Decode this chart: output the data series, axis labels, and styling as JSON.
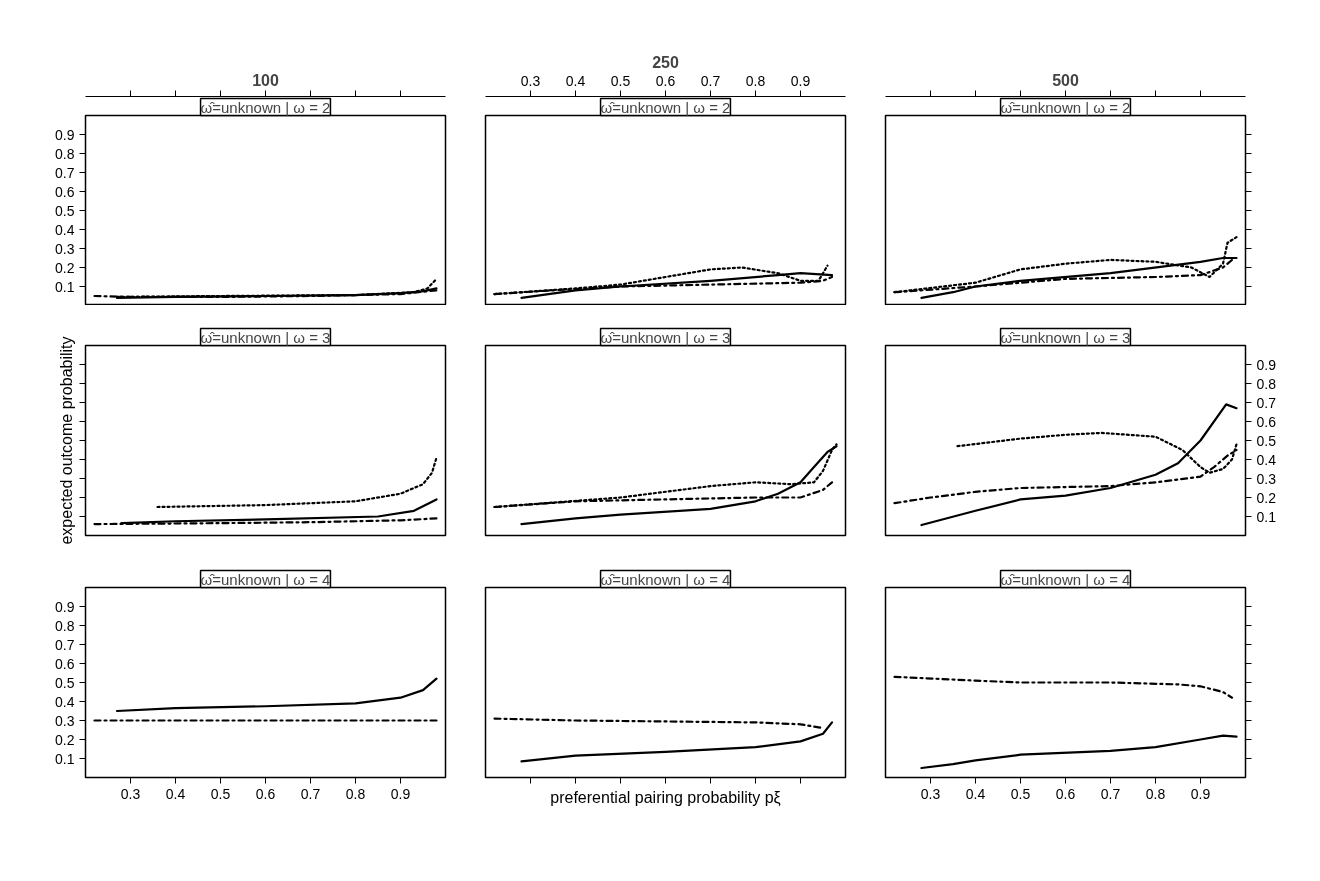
{
  "chart_data": [
    {
      "type": "line",
      "title": "100",
      "subtitle": "ω̂=unknown | ω = 2",
      "xlim": [
        0.2,
        1.0
      ],
      "ylim": [
        0,
        1.0
      ],
      "yticks": [
        0.1,
        0.2,
        0.3,
        0.4,
        0.5,
        0.6,
        0.7,
        0.8,
        0.9
      ],
      "tick_labels": "y",
      "grid": false,
      "series": [
        {
          "color": "#000000",
          "line_style": "solid",
          "x": [
            0.27,
            0.4,
            0.6,
            0.8,
            0.9,
            0.95,
            0.98
          ],
          "values": [
            0.04,
            0.045,
            0.05,
            0.055,
            0.065,
            0.075,
            0.09
          ]
        },
        {
          "color": "#000000",
          "line_style": "dotted",
          "x": [
            0.27,
            0.5,
            0.8,
            0.93,
            0.96,
            0.98
          ],
          "values": [
            0.045,
            0.05,
            0.055,
            0.07,
            0.09,
            0.14
          ]
        },
        {
          "color": "#000000",
          "line_style": "dashdot",
          "x": [
            0.22,
            0.3,
            0.5,
            0.7,
            0.9,
            0.98
          ],
          "values": [
            0.05,
            0.045,
            0.045,
            0.05,
            0.06,
            0.08
          ]
        }
      ]
    },
    {
      "type": "line",
      "title": "250",
      "subtitle": "ω̂=unknown | ω = 2",
      "xlim": [
        0.2,
        1.0
      ],
      "ylim": [
        0,
        1.0
      ],
      "x2lim": [
        0.2,
        1.0
      ],
      "x2ticks": [
        0.3,
        0.4,
        0.5,
        0.6,
        0.7,
        0.8,
        0.9
      ],
      "tick_labels": "x2",
      "grid": false,
      "series": [
        {
          "color": "#000000",
          "line_style": "solid",
          "x": [
            0.28,
            0.4,
            0.5,
            0.7,
            0.85,
            0.9,
            0.97
          ],
          "values": [
            0.04,
            0.08,
            0.1,
            0.13,
            0.16,
            0.17,
            0.16
          ]
        },
        {
          "color": "#000000",
          "line_style": "dotted",
          "x": [
            0.22,
            0.4,
            0.5,
            0.6,
            0.7,
            0.77,
            0.85,
            0.9,
            0.94,
            0.96
          ],
          "values": [
            0.06,
            0.09,
            0.11,
            0.15,
            0.19,
            0.2,
            0.17,
            0.13,
            0.13,
            0.21
          ]
        },
        {
          "color": "#000000",
          "line_style": "dashdot",
          "x": [
            0.22,
            0.35,
            0.5,
            0.7,
            0.9,
            0.95,
            0.97
          ],
          "values": [
            0.06,
            0.08,
            0.1,
            0.11,
            0.12,
            0.13,
            0.15
          ]
        }
      ]
    },
    {
      "type": "line",
      "title": "500",
      "subtitle": "ω̂=unknown | ω = 2",
      "xlim": [
        0.2,
        1.0
      ],
      "ylim": [
        0,
        1.0
      ],
      "tick_labels": false,
      "grid": false,
      "series": [
        {
          "color": "#000000",
          "line_style": "solid",
          "x": [
            0.28,
            0.35,
            0.4,
            0.5,
            0.7,
            0.9,
            0.95,
            0.98
          ],
          "values": [
            0.04,
            0.07,
            0.1,
            0.13,
            0.17,
            0.23,
            0.25,
            0.25
          ]
        },
        {
          "color": "#000000",
          "line_style": "dotted",
          "x": [
            0.22,
            0.4,
            0.5,
            0.6,
            0.7,
            0.8,
            0.88,
            0.92,
            0.95,
            0.96,
            0.98
          ],
          "values": [
            0.07,
            0.12,
            0.19,
            0.22,
            0.24,
            0.23,
            0.2,
            0.15,
            0.22,
            0.33,
            0.36
          ]
        },
        {
          "color": "#000000",
          "line_style": "dashdot",
          "x": [
            0.22,
            0.4,
            0.6,
            0.8,
            0.9,
            0.95,
            0.97
          ],
          "values": [
            0.07,
            0.1,
            0.14,
            0.15,
            0.16,
            0.2,
            0.24
          ]
        }
      ]
    },
    {
      "type": "line",
      "subtitle": "ω̂=unknown | ω = 3",
      "ylabel": "expected outcome probability",
      "xlim": [
        0.2,
        1.0
      ],
      "ylim": [
        0,
        1.0
      ],
      "tick_labels": false,
      "grid": false,
      "series": [
        {
          "color": "#000000",
          "line_style": "solid",
          "x": [
            0.28,
            0.4,
            0.6,
            0.85,
            0.93,
            0.98
          ],
          "values": [
            0.065,
            0.075,
            0.085,
            0.1,
            0.13,
            0.19
          ]
        },
        {
          "color": "#000000",
          "line_style": "dotted",
          "x": [
            0.36,
            0.6,
            0.8,
            0.9,
            0.95,
            0.97,
            0.98
          ],
          "values": [
            0.15,
            0.16,
            0.18,
            0.22,
            0.27,
            0.33,
            0.41
          ]
        },
        {
          "color": "#000000",
          "line_style": "dashdot",
          "x": [
            0.22,
            0.5,
            0.7,
            0.9,
            0.98
          ],
          "values": [
            0.06,
            0.065,
            0.07,
            0.08,
            0.09
          ]
        }
      ]
    },
    {
      "type": "line",
      "subtitle": "ω̂=unknown | ω = 3",
      "xlim": [
        0.2,
        1.0
      ],
      "ylim": [
        0,
        1.0
      ],
      "grid": false,
      "series": [
        {
          "color": "#000000",
          "line_style": "solid",
          "x": [
            0.28,
            0.4,
            0.5,
            0.7,
            0.8,
            0.85,
            0.9,
            0.93,
            0.96,
            0.98
          ],
          "values": [
            0.06,
            0.09,
            0.11,
            0.14,
            0.18,
            0.22,
            0.28,
            0.36,
            0.44,
            0.47
          ]
        },
        {
          "color": "#000000",
          "line_style": "dotted",
          "x": [
            0.22,
            0.5,
            0.7,
            0.8,
            0.88,
            0.93,
            0.95,
            0.97,
            0.98
          ],
          "values": [
            0.15,
            0.2,
            0.26,
            0.28,
            0.27,
            0.28,
            0.34,
            0.45,
            0.48
          ]
        },
        {
          "color": "#000000",
          "line_style": "dashdot",
          "x": [
            0.22,
            0.4,
            0.6,
            0.8,
            0.9,
            0.95,
            0.97
          ],
          "values": [
            0.15,
            0.18,
            0.19,
            0.2,
            0.2,
            0.24,
            0.28
          ]
        }
      ]
    },
    {
      "type": "line",
      "subtitle": "ω̂=unknown | ω = 3",
      "xlim": [
        0.2,
        1.0
      ],
      "ylim": [
        0,
        1.0
      ],
      "yticks": [
        0.1,
        0.2,
        0.3,
        0.4,
        0.5,
        0.6,
        0.7,
        0.8,
        0.9
      ],
      "tick_labels": "y",
      "grid": false,
      "series": [
        {
          "color": "#000000",
          "line_style": "solid",
          "x": [
            0.28,
            0.4,
            0.5,
            0.6,
            0.7,
            0.8,
            0.85,
            0.9,
            0.957,
            0.98
          ],
          "values": [
            0.055,
            0.13,
            0.19,
            0.21,
            0.25,
            0.32,
            0.38,
            0.5,
            0.69,
            0.67
          ]
        },
        {
          "color": "#000000",
          "line_style": "dotted",
          "x": [
            0.36,
            0.5,
            0.6,
            0.68,
            0.8,
            0.86,
            0.9,
            0.92,
            0.95,
            0.97,
            0.98
          ],
          "values": [
            0.47,
            0.51,
            0.53,
            0.54,
            0.52,
            0.45,
            0.36,
            0.33,
            0.35,
            0.4,
            0.48
          ]
        },
        {
          "color": "#000000",
          "line_style": "dashdot",
          "x": [
            0.22,
            0.3,
            0.4,
            0.5,
            0.7,
            0.8,
            0.9,
            0.93,
            0.96,
            0.98
          ],
          "values": [
            0.17,
            0.2,
            0.23,
            0.25,
            0.26,
            0.28,
            0.31,
            0.36,
            0.42,
            0.45
          ]
        }
      ]
    },
    {
      "type": "line",
      "subtitle": "ω̂=unknown | ω = 4",
      "xlim": [
        0.2,
        1.0
      ],
      "ylim": [
        0,
        1.0
      ],
      "xticks": [
        0.3,
        0.4,
        0.5,
        0.6,
        0.7,
        0.8,
        0.9
      ],
      "yticks": [
        0.1,
        0.2,
        0.3,
        0.4,
        0.5,
        0.6,
        0.7,
        0.8,
        0.9
      ],
      "grid": false,
      "series": [
        {
          "color": "#000000",
          "line_style": "solid",
          "x": [
            0.27,
            0.4,
            0.6,
            0.8,
            0.9,
            0.95,
            0.98
          ],
          "values": [
            0.35,
            0.365,
            0.375,
            0.39,
            0.42,
            0.46,
            0.52
          ]
        },
        {
          "color": "#000000",
          "line_style": "dashdot",
          "x": [
            0.22,
            0.5,
            0.98
          ],
          "values": [
            0.3,
            0.3,
            0.3
          ]
        }
      ]
    },
    {
      "type": "line",
      "subtitle": "ω̂=unknown | ω = 4",
      "xlabel": "preferential pairing probability pξ",
      "xlim": [
        0.2,
        1.0
      ],
      "ylim": [
        0,
        1.0
      ],
      "tick_labels": false,
      "grid": false,
      "series": [
        {
          "color": "#000000",
          "line_style": "solid",
          "x": [
            0.28,
            0.4,
            0.6,
            0.8,
            0.9,
            0.95,
            0.97
          ],
          "values": [
            0.085,
            0.115,
            0.135,
            0.16,
            0.19,
            0.23,
            0.29
          ]
        },
        {
          "color": "#000000",
          "line_style": "dashdot",
          "x": [
            0.22,
            0.4,
            0.6,
            0.8,
            0.9,
            0.95
          ],
          "values": [
            0.31,
            0.3,
            0.295,
            0.29,
            0.28,
            0.26
          ]
        }
      ]
    },
    {
      "type": "line",
      "subtitle": "ω̂=unknown | ω = 4",
      "xlim": [
        0.2,
        1.0
      ],
      "ylim": [
        0,
        1.0
      ],
      "xticks": [
        0.3,
        0.4,
        0.5,
        0.6,
        0.7,
        0.8,
        0.9
      ],
      "tick_labels": "x",
      "grid": false,
      "series": [
        {
          "color": "#000000",
          "line_style": "solid",
          "x": [
            0.28,
            0.35,
            0.4,
            0.5,
            0.7,
            0.8,
            0.9,
            0.95,
            0.98
          ],
          "values": [
            0.05,
            0.07,
            0.09,
            0.12,
            0.14,
            0.16,
            0.2,
            0.22,
            0.215
          ]
        },
        {
          "color": "#000000",
          "line_style": "dashdot",
          "x": [
            0.22,
            0.4,
            0.5,
            0.7,
            0.85,
            0.9,
            0.95,
            0.97
          ],
          "values": [
            0.53,
            0.51,
            0.5,
            0.5,
            0.49,
            0.48,
            0.45,
            0.42
          ]
        }
      ]
    }
  ]
}
